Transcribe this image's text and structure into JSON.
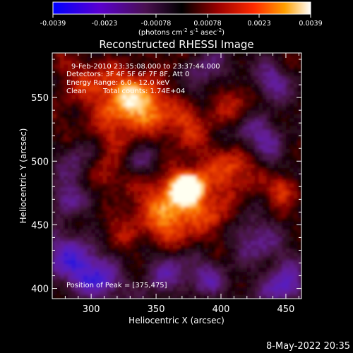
{
  "chart_data": {
    "type": "heatmap",
    "title": "Reconstructed RHESSI Image",
    "xlabel": "Heliocentric X (arcsec)",
    "ylabel": "Heliocentric Y (arcsec)",
    "xlim": [
      270,
      462
    ],
    "ylim": [
      392,
      585
    ],
    "xticks": [
      300,
      350,
      400,
      450
    ],
    "yticks": [
      400,
      450,
      500,
      550
    ],
    "colorbar": {
      "min": -0.0039,
      "max": 0.0039,
      "ticks": [
        "-0.0039",
        "-0.0023",
        "-0.00078",
        "0.00078",
        "0.0023",
        "0.0039"
      ],
      "unit_base": "(photons cm",
      "unit_exp1": "-2",
      "unit_mid1": " s",
      "unit_exp2": "-1",
      "unit_mid2": " asec",
      "unit_exp3": "-2",
      "unit_end": ")",
      "colors": [
        "#0000ff",
        "#6a00c8",
        "#5a0a3a",
        "#000000",
        "#a00000",
        "#ff2000",
        "#ff9000",
        "#ffffff"
      ]
    },
    "annotations": {
      "time": "9-Feb-2010 23:35:08.000 to 23:37:44.000",
      "detectors": "Detectors: 3F 4F 5F 6F 7F 8F, Att 0",
      "energy": "Energy Range: 6.0 - 12.0 keV",
      "clean": "Clean",
      "counts": "Total counts: 1.74E+04",
      "peak": "Position of Peak = [375,475]"
    },
    "peak": [
      375,
      475
    ]
  },
  "footer": {
    "date": "8-May-2022 20:35"
  }
}
